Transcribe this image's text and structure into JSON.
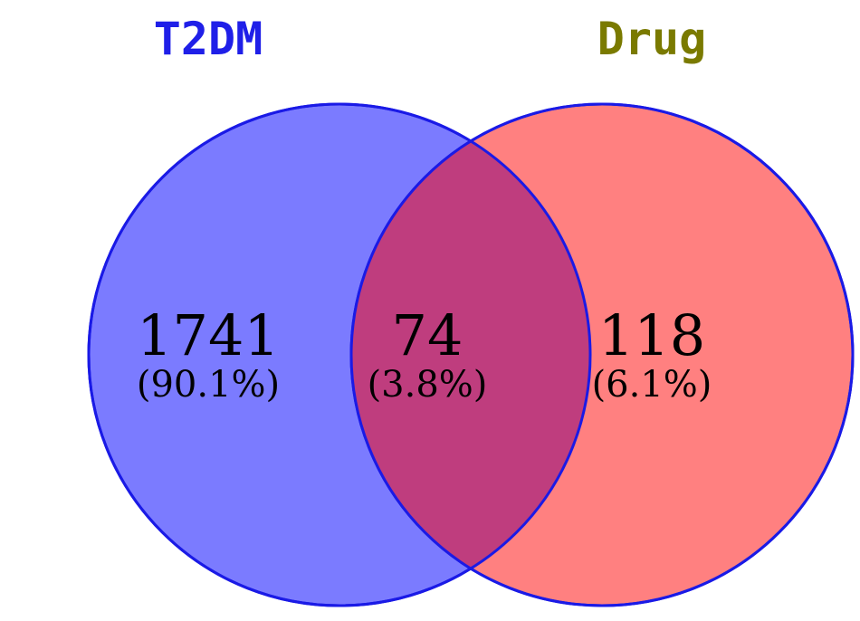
{
  "venn": {
    "sets": [
      {
        "label": "T2DM",
        "label_color": "#1f1fe8",
        "fill": "#7b7bff",
        "stroke": "#1a1ae6"
      },
      {
        "label": "Drug",
        "label_color": "#7a7a00",
        "fill": "#ff8080",
        "stroke": "#1a1ae6"
      }
    ],
    "intersection_fill": "#bf3d7e",
    "regions": {
      "left_only": {
        "count": "1741",
        "percent": "(90.1%)"
      },
      "both": {
        "count": "74",
        "percent": "(3.8%)"
      },
      "right_only": {
        "count": "118",
        "percent": "(6.1%)"
      }
    }
  }
}
